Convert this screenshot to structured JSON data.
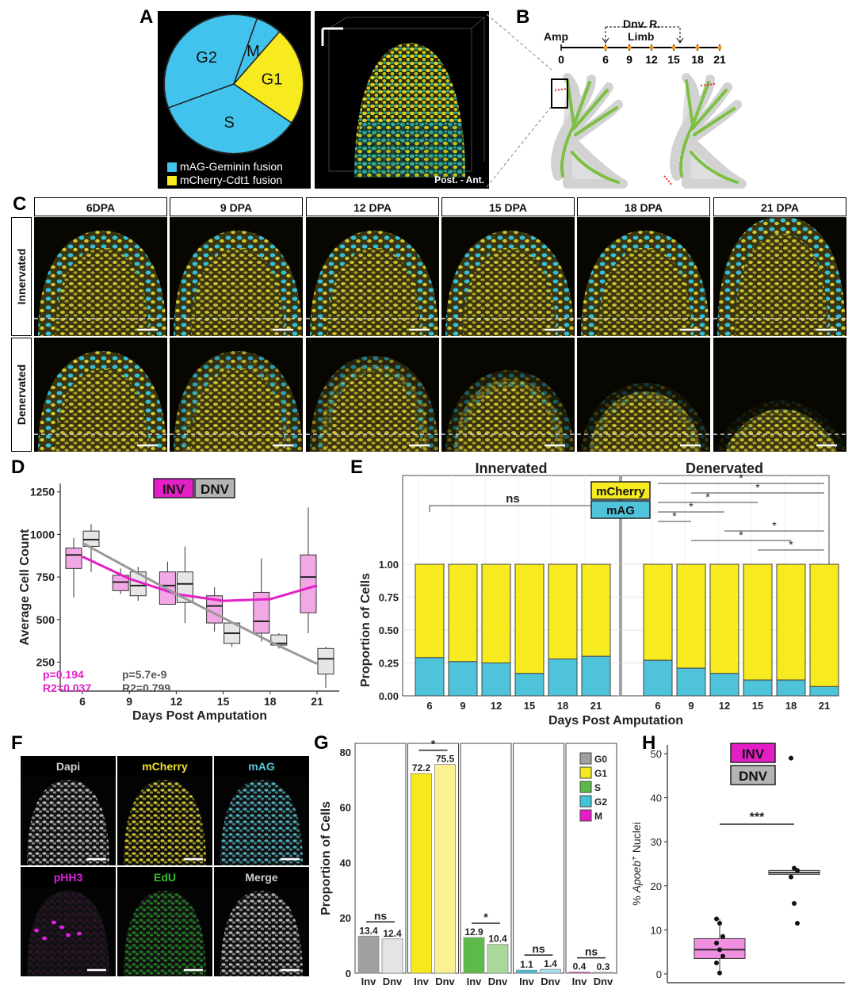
{
  "panels": {
    "A": "A",
    "B": "B",
    "C": "C",
    "D": "D",
    "E": "E",
    "F": "F",
    "G": "G",
    "H": "H"
  },
  "panelA": {
    "pie_labels": [
      "G2",
      "M",
      "G1",
      "S"
    ],
    "legend": [
      {
        "label": "mAG-Geminin fusion",
        "color": "#41c3ee"
      },
      {
        "label": "mCherry-Cdt1 fusion",
        "color": "#f7ea1f"
      }
    ],
    "volume_caption": "Post. - Ant."
  },
  "panelB": {
    "amp_label": "Amp",
    "dnv_label": "Dnv. R.",
    "limb_label": "Limb",
    "timepoints": [
      "0",
      "6",
      "9",
      "12",
      "15",
      "18",
      "21"
    ]
  },
  "panelC": {
    "columns": [
      "6DPA",
      "9 DPA",
      "12 DPA",
      "15 DPA",
      "18 DPA",
      "21 DPA"
    ],
    "rows": [
      "Innervated",
      "Denervated"
    ]
  },
  "panelD": {
    "legend": [
      {
        "label": "INV",
        "color": "#e41fc6"
      },
      {
        "label": "DNV",
        "color": "#b4b4b4"
      }
    ],
    "stats": [
      {
        "p": "p=0.194",
        "r2": "R2=0.037",
        "color": "#e41fc6"
      },
      {
        "p": "p=5.7e-9",
        "r2": "R2=0.799",
        "color": "#555555"
      }
    ]
  },
  "panelE": {
    "legend": [
      {
        "label": "mCherry",
        "color": "#f7ea1f"
      },
      {
        "label": "mAG",
        "color": "#4ec3da"
      }
    ],
    "ns_label": "ns",
    "star": "*"
  },
  "panelF": {
    "tiles": [
      {
        "label": "Dapi",
        "color": "#d0d0d0"
      },
      {
        "label": "mCherry",
        "color": "#f0e030"
      },
      {
        "label": "mAG",
        "color": "#58c8d8"
      },
      {
        "label": "pHH3",
        "color": "#e020e0"
      },
      {
        "label": "EdU",
        "color": "#30c030"
      },
      {
        "label": "Merge",
        "color": "#d0d0d0"
      }
    ]
  },
  "panelG": {
    "legend": [
      {
        "label": "G0",
        "color": "#a0a0a0"
      },
      {
        "label": "G1",
        "color": "#f5e81c"
      },
      {
        "label": "S",
        "color": "#5cba47"
      },
      {
        "label": "G2",
        "color": "#3fc3d8"
      },
      {
        "label": "M",
        "color": "#e91bc8"
      }
    ],
    "sig": [
      "ns",
      "*",
      "*",
      "ns",
      "ns"
    ],
    "xlabels": [
      "Inv",
      "Dnv"
    ]
  },
  "panelH": {
    "legend": [
      {
        "label": "INV",
        "color": "#e41fc6"
      },
      {
        "label": "DNV",
        "color": "#b4b4b4"
      }
    ],
    "sig": "***",
    "ylabel_prefix": "% ",
    "ylabel_gene": "Apoeb",
    "ylabel_sup": "+",
    "ylabel_suffix": " Nuclei"
  },
  "chart_data": [
    {
      "id": "A",
      "type": "pie",
      "slices": [
        {
          "label": "G2",
          "value": 36,
          "color": "#41c3ee"
        },
        {
          "label": "M",
          "value": 6,
          "color": "#41c3ee"
        },
        {
          "label": "G1",
          "value": 23,
          "color": "#f7ea1f"
        },
        {
          "label": "S",
          "value": 35,
          "color": "#41c3ee"
        }
      ]
    },
    {
      "id": "D",
      "type": "box",
      "xlabel": "Days Post Amputation",
      "ylabel": "Average Cell Count",
      "categories": [
        "6",
        "9",
        "12",
        "15",
        "18",
        "21"
      ],
      "yticks": [
        250,
        500,
        750,
        1000,
        1250
      ],
      "ylim": [
        80,
        1300
      ],
      "series": [
        {
          "name": "INV",
          "color": "#e41fc6",
          "boxes": [
            {
              "min": 630,
              "q1": 800,
              "med": 880,
              "q3": 920,
              "max": 980
            },
            {
              "min": 650,
              "q1": 670,
              "med": 720,
              "q3": 760,
              "max": 800
            },
            {
              "min": 590,
              "q1": 590,
              "med": 700,
              "q3": 780,
              "max": 840
            },
            {
              "min": 430,
              "q1": 480,
              "med": 580,
              "q3": 640,
              "max": 690
            },
            {
              "min": 370,
              "q1": 420,
              "med": 490,
              "q3": 660,
              "max": 860
            },
            {
              "min": 420,
              "q1": 540,
              "med": 750,
              "q3": 880,
              "max": 1160
            }
          ]
        },
        {
          "name": "DNV",
          "color": "#b4b4b4",
          "boxes": [
            {
              "min": 780,
              "q1": 930,
              "med": 970,
              "q3": 1020,
              "max": 1060
            },
            {
              "min": 610,
              "q1": 640,
              "med": 700,
              "q3": 780,
              "max": 810
            },
            {
              "min": 480,
              "q1": 600,
              "med": 710,
              "q3": 780,
              "max": 930
            },
            {
              "min": 340,
              "q1": 360,
              "med": 420,
              "q3": 480,
              "max": 490
            },
            {
              "min": 330,
              "q1": 350,
              "med": 360,
              "q3": 410,
              "max": 420
            },
            {
              "min": 100,
              "q1": 180,
              "med": 270,
              "q3": 330,
              "max": 340
            }
          ]
        }
      ],
      "fits": [
        {
          "name": "INV",
          "x": [
            6,
            9,
            12,
            15,
            18,
            21
          ],
          "y": [
            870,
            740,
            650,
            610,
            620,
            700
          ]
        },
        {
          "name": "DNV",
          "x": [
            6,
            9,
            12,
            15,
            18,
            21
          ],
          "y": [
            950,
            800,
            650,
            510,
            370,
            240
          ]
        }
      ]
    },
    {
      "id": "E",
      "type": "bar",
      "ylabel": "Proportion of Cells",
      "xlabel": "Days Post Amputation",
      "yticks": [
        0.0,
        0.25,
        0.5,
        0.75,
        1.0
      ],
      "facets": [
        "Innervated",
        "Denervated"
      ],
      "categories": [
        "6",
        "9",
        "12",
        "15",
        "18",
        "21"
      ],
      "series": [
        {
          "name": "mAG",
          "innervated": [
            0.29,
            0.26,
            0.25,
            0.17,
            0.28,
            0.3
          ],
          "denervated": [
            0.27,
            0.21,
            0.17,
            0.12,
            0.12,
            0.07
          ]
        },
        {
          "name": "mCherry",
          "innervated": [
            0.71,
            0.74,
            0.75,
            0.83,
            0.72,
            0.7
          ],
          "denervated": [
            0.73,
            0.79,
            0.83,
            0.88,
            0.88,
            0.93
          ]
        }
      ]
    },
    {
      "id": "G",
      "type": "bar",
      "ylabel": "Proportion of Cells",
      "yticks": [
        0,
        20,
        40,
        60,
        80
      ],
      "ylim": [
        0,
        82
      ],
      "categories": [
        "G0",
        "G1",
        "S",
        "G2",
        "M"
      ],
      "series": [
        {
          "name": "Inv",
          "values": [
            13.4,
            72.2,
            12.9,
            1.1,
            0.4
          ]
        },
        {
          "name": "Dnv",
          "values": [
            12.4,
            75.5,
            10.4,
            1.4,
            0.3
          ]
        }
      ]
    },
    {
      "id": "H",
      "type": "box",
      "ylabel": "% Apoeb+ Nuclei",
      "yticks": [
        0,
        10,
        20,
        30,
        40,
        50
      ],
      "ylim": [
        -2,
        52
      ],
      "series": [
        {
          "name": "INV",
          "box": {
            "min": 0.2,
            "q1": 3.5,
            "med": 5.5,
            "q3": 8,
            "max": 12.5
          },
          "points": [
            12.5,
            11.5,
            8.5,
            7,
            5.5,
            4,
            2.5,
            0.2
          ]
        },
        {
          "name": "DNV",
          "box": {
            "min": 22.5,
            "q1": 22.6,
            "med": 23,
            "q3": 23.5,
            "max": 24
          },
          "points": [
            49,
            24,
            23.5,
            22,
            16,
            11.5
          ]
        }
      ]
    }
  ]
}
